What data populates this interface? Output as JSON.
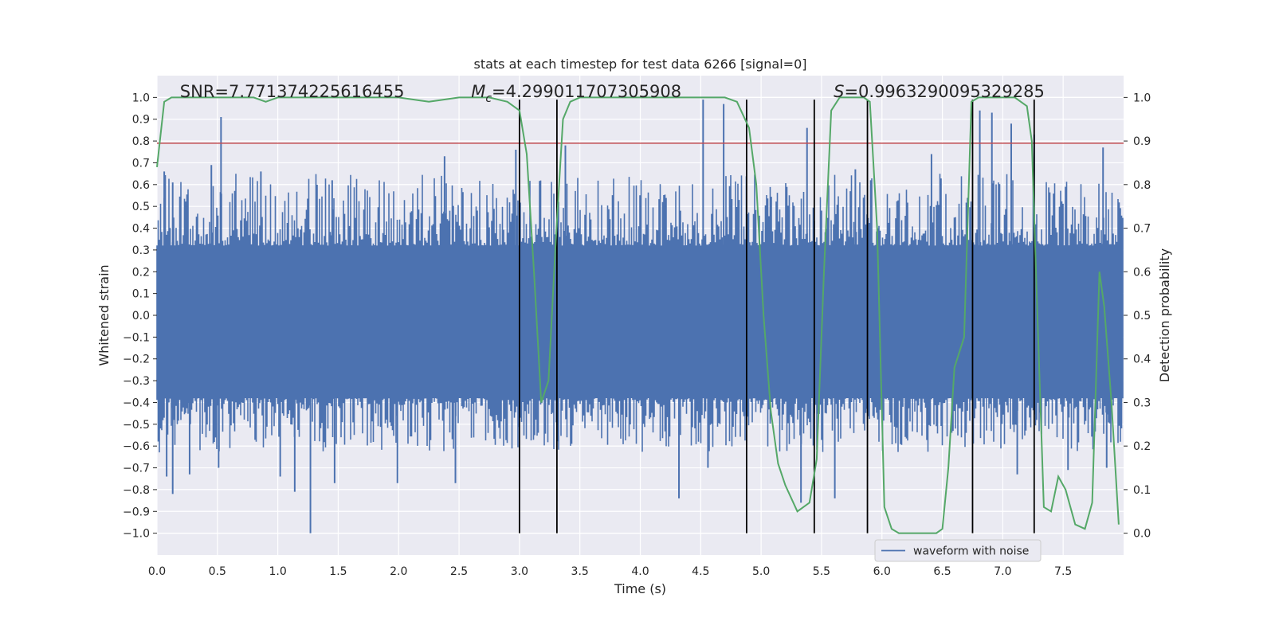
{
  "chart_data": {
    "type": "line",
    "title": "stats at each timestep for test data 6266 [signal=0]",
    "xlabel": "Time (s)",
    "ylabel": "Whitened strain",
    "y2label": "Detection probability",
    "xlim": [
      0.0,
      8.0
    ],
    "ylim": [
      -1.1,
      1.1
    ],
    "y2lim": [
      -0.05,
      1.05
    ],
    "xticks": [
      0.0,
      0.5,
      1.0,
      1.5,
      2.0,
      2.5,
      3.0,
      3.5,
      4.0,
      4.5,
      5.0,
      5.5,
      6.0,
      6.5,
      7.0,
      7.5
    ],
    "yticks": [
      -1.0,
      -0.9,
      -0.8,
      -0.7,
      -0.6,
      -0.5,
      -0.4,
      -0.3,
      -0.2,
      -0.1,
      0.0,
      0.1,
      0.2,
      0.3,
      0.4,
      0.5,
      0.6,
      0.7,
      0.8,
      0.9,
      1.0
    ],
    "y2ticks": [
      0.0,
      0.1,
      0.2,
      0.3,
      0.4,
      0.5,
      0.6,
      0.7,
      0.8,
      0.9,
      1.0
    ],
    "grid": true,
    "legend_position": "bottom-right",
    "annotations": {
      "snr": "SNR=7.771374225616455",
      "mc_symbol": "M",
      "mc_sub": "c",
      "mc_value": "=4.299011707305908",
      "s_symbol": "S",
      "s_value": "=0.9963290095329285"
    },
    "series": [
      {
        "name": "waveform with noise",
        "axis": "left",
        "color": "#4c72b0",
        "note_envelope": "dense noisy waveform; band roughly ±0.3 with peaks",
        "band_top": 0.32,
        "band_bottom": -0.38,
        "peaks": [
          {
            "x": 0.06,
            "y": 0.66
          },
          {
            "x": 0.08,
            "y": -0.74
          },
          {
            "x": 0.13,
            "y": 0.61
          },
          {
            "x": 0.13,
            "y": -0.82
          },
          {
            "x": 0.27,
            "y": -0.73
          },
          {
            "x": 0.45,
            "y": 0.69
          },
          {
            "x": 0.53,
            "y": 0.91
          },
          {
            "x": 0.51,
            "y": -0.7
          },
          {
            "x": 0.86,
            "y": 0.66
          },
          {
            "x": 1.02,
            "y": -0.74
          },
          {
            "x": 1.14,
            "y": -0.81
          },
          {
            "x": 1.27,
            "y": -1.0
          },
          {
            "x": 1.45,
            "y": 0.62
          },
          {
            "x": 1.47,
            "y": -0.77
          },
          {
            "x": 1.99,
            "y": -0.77
          },
          {
            "x": 2.38,
            "y": 0.73
          },
          {
            "x": 2.47,
            "y": -0.77
          },
          {
            "x": 2.97,
            "y": 0.76
          },
          {
            "x": 3.38,
            "y": 0.78
          },
          {
            "x": 4.32,
            "y": -0.84
          },
          {
            "x": 4.52,
            "y": 0.99
          },
          {
            "x": 4.69,
            "y": 0.97
          },
          {
            "x": 4.56,
            "y": -0.7
          },
          {
            "x": 5.38,
            "y": 0.86
          },
          {
            "x": 5.33,
            "y": -0.86
          },
          {
            "x": 5.61,
            "y": -0.84
          },
          {
            "x": 5.78,
            "y": 0.67
          },
          {
            "x": 6.41,
            "y": 0.74
          },
          {
            "x": 6.81,
            "y": 0.94
          },
          {
            "x": 6.91,
            "y": 0.93
          },
          {
            "x": 7.07,
            "y": 0.88
          },
          {
            "x": 7.26,
            "y": 0.83
          },
          {
            "x": 7.12,
            "y": -0.73
          },
          {
            "x": 7.54,
            "y": -0.71
          },
          {
            "x": 7.83,
            "y": 0.77
          },
          {
            "x": 7.86,
            "y": -0.7
          }
        ]
      },
      {
        "name": "detection probability",
        "axis": "right",
        "color": "#55a868",
        "x": [
          0.0,
          0.06,
          0.12,
          0.5,
          0.8,
          0.9,
          1.0,
          1.5,
          2.0,
          2.25,
          2.5,
          2.75,
          2.9,
          3.0,
          3.06,
          3.12,
          3.18,
          3.24,
          3.3,
          3.36,
          3.42,
          3.5,
          4.0,
          4.5,
          4.7,
          4.8,
          4.9,
          4.96,
          5.02,
          5.08,
          5.14,
          5.2,
          5.3,
          5.35,
          5.4,
          5.46,
          5.52,
          5.58,
          5.65,
          5.85,
          5.9,
          5.96,
          6.02,
          6.08,
          6.14,
          6.3,
          6.45,
          6.5,
          6.55,
          6.6,
          6.68,
          6.74,
          6.8,
          6.86,
          6.92,
          7.0,
          7.1,
          7.2,
          7.24,
          7.28,
          7.34,
          7.4,
          7.46,
          7.52,
          7.6,
          7.68,
          7.74,
          7.8,
          7.84,
          7.9,
          7.96
        ],
        "values": [
          0.84,
          0.99,
          1.0,
          1.0,
          1.0,
          0.99,
          1.0,
          1.0,
          1.0,
          0.99,
          1.0,
          1.0,
          0.99,
          0.97,
          0.87,
          0.6,
          0.3,
          0.35,
          0.67,
          0.95,
          0.99,
          1.0,
          1.0,
          1.0,
          1.0,
          0.99,
          0.93,
          0.8,
          0.5,
          0.28,
          0.16,
          0.11,
          0.05,
          0.06,
          0.07,
          0.17,
          0.6,
          0.97,
          1.0,
          1.0,
          0.99,
          0.7,
          0.06,
          0.01,
          0.0,
          0.0,
          0.0,
          0.01,
          0.15,
          0.38,
          0.45,
          0.99,
          1.0,
          1.0,
          1.0,
          1.0,
          1.0,
          0.98,
          0.9,
          0.56,
          0.06,
          0.05,
          0.13,
          0.1,
          0.02,
          0.01,
          0.07,
          0.6,
          0.52,
          0.3,
          0.02
        ]
      }
    ],
    "threshold": {
      "axis": "left",
      "y": 0.79,
      "color": "#c44e52"
    },
    "vlines": {
      "color": "#000000",
      "x": [
        3.0,
        3.31,
        4.88,
        5.44,
        5.88,
        6.75,
        7.26
      ],
      "y_top": 0.99,
      "y_bottom": -1.0
    }
  }
}
